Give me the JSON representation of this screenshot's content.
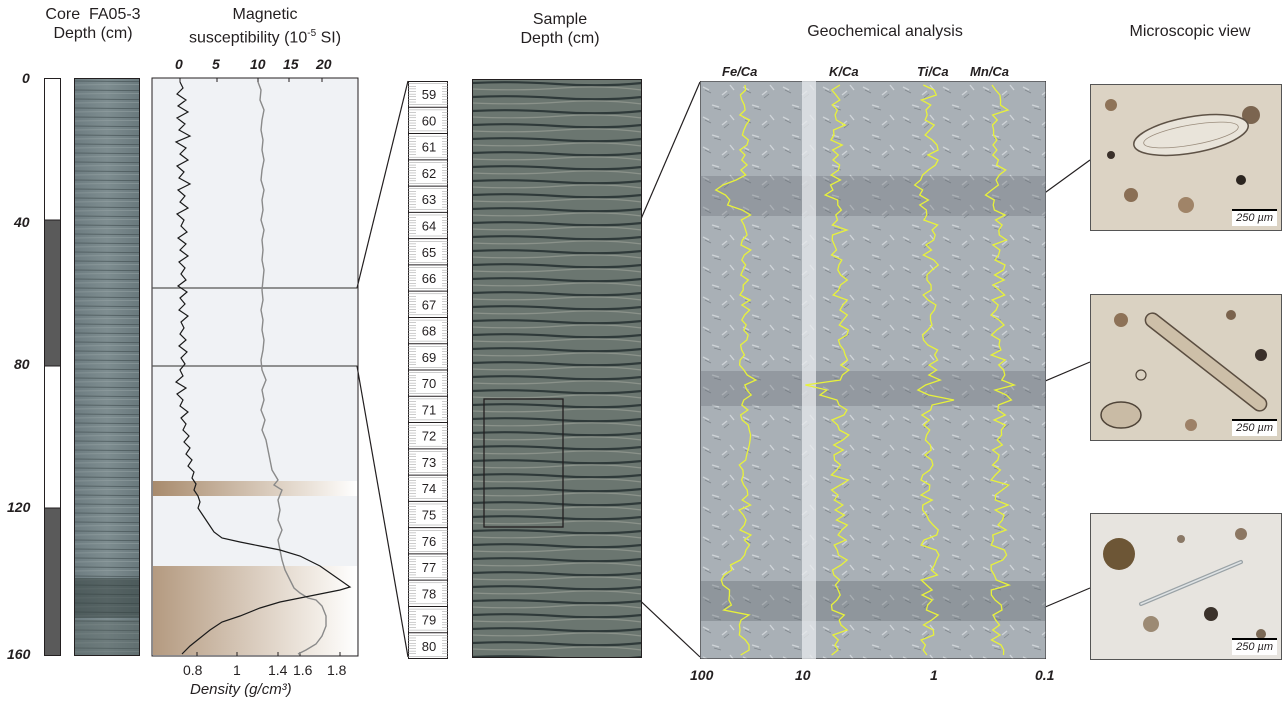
{
  "headers": {
    "core": "Core  FA05-3",
    "core_depth": "Depth (cm)",
    "ms_line1": "Magnetic",
    "ms_line2_a": "susceptibility (10",
    "ms_line2_exp": "-5",
    "ms_line2_b": " SI)",
    "sample": "Sample",
    "sample_depth": "Depth (cm)",
    "geochem": "Geochemical analysis",
    "micro": "Microscopic view"
  },
  "depth_axis": [
    "0",
    "40",
    "80",
    "120",
    "160"
  ],
  "susceptibility_axis": [
    "0",
    "5",
    "10",
    "15",
    "20"
  ],
  "density_axis": {
    "ticks": [
      "0.8",
      "1",
      "1.4",
      "1.6",
      "1.8"
    ],
    "label": "Density (g/cm³)"
  },
  "sample_depths": [
    "59",
    "60",
    "61",
    "62",
    "63",
    "64",
    "65",
    "66",
    "67",
    "68",
    "69",
    "70",
    "71",
    "72",
    "73",
    "74",
    "75",
    "76",
    "77",
    "78",
    "79",
    "80"
  ],
  "geochem": {
    "series": [
      "Fe/Ca",
      "K/Ca",
      "Ti/Ca",
      "Mn/Ca"
    ],
    "scale": [
      "100",
      "10",
      "1",
      "0.1"
    ]
  },
  "microscopy": {
    "scale_labels": [
      "250 µm",
      "250 µm",
      "250 µm"
    ]
  },
  "colors": {
    "xrf_trace": "#e8f23a",
    "dark_lithology": "#5a5a5a",
    "tan_layer": "#b9a084"
  }
}
